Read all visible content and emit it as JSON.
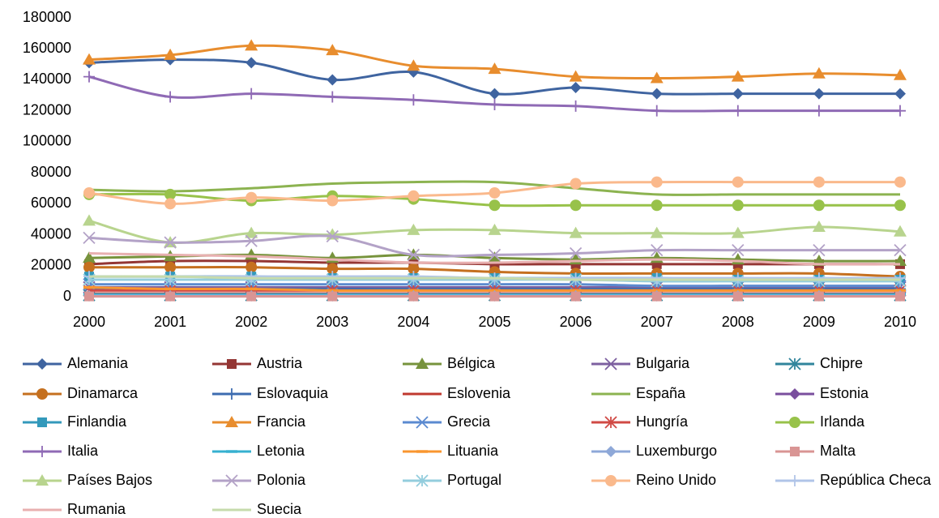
{
  "chart_data": {
    "type": "line",
    "x": [
      "2000",
      "2001",
      "2002",
      "2003",
      "2004",
      "2005",
      "2006",
      "2007",
      "2008",
      "2009",
      "2010"
    ],
    "ylim": [
      0,
      180000
    ],
    "yticks": [
      0,
      20000,
      40000,
      60000,
      80000,
      100000,
      120000,
      140000,
      160000,
      180000
    ],
    "grid": false,
    "legend": "bottom",
    "series": [
      {
        "name": "Alemania",
        "color": "#3f64a0",
        "marker": "diamond",
        "values": [
          151000,
          153000,
          151000,
          140000,
          145000,
          131000,
          135000,
          131000,
          131000,
          131000,
          131000
        ]
      },
      {
        "name": "Austria",
        "color": "#943634",
        "marker": "square",
        "values": [
          21000,
          23000,
          23000,
          22000,
          22000,
          21000,
          21000,
          21000,
          21000,
          21000,
          21000
        ]
      },
      {
        "name": "Bélgica",
        "color": "#77933c",
        "marker": "triangle",
        "values": [
          25000,
          26000,
          27000,
          25000,
          27000,
          25000,
          24000,
          25000,
          24000,
          23000,
          23000
        ]
      },
      {
        "name": "Bulgaria",
        "color": "#7d60a0",
        "marker": "x",
        "values": [
          6000,
          6000,
          6000,
          6000,
          6000,
          6000,
          6000,
          6000,
          6000,
          6000,
          6000
        ]
      },
      {
        "name": "Chipre",
        "color": "#31859c",
        "marker": "star",
        "values": [
          1000,
          1000,
          1000,
          1000,
          1000,
          1000,
          1000,
          1000,
          1000,
          1000,
          1000
        ]
      },
      {
        "name": "Dinamarca",
        "color": "#c5701f",
        "marker": "circle",
        "values": [
          19000,
          19000,
          19000,
          18000,
          18000,
          16000,
          15000,
          15000,
          15000,
          15000,
          13000
        ]
      },
      {
        "name": "Eslovaquia",
        "color": "#3d6cb0",
        "marker": "plus",
        "values": [
          5000,
          5000,
          5000,
          5000,
          5000,
          5000,
          5000,
          5000,
          5000,
          5000,
          5000
        ]
      },
      {
        "name": "Eslovenia",
        "color": "#c0392f",
        "marker": "none",
        "values": [
          2000,
          2000,
          2000,
          2000,
          2000,
          2000,
          2000,
          2000,
          2000,
          2000,
          2000
        ]
      },
      {
        "name": "España",
        "color": "#8cb350",
        "marker": "none",
        "values": [
          69000,
          68000,
          70000,
          73000,
          74000,
          74000,
          70000,
          66000,
          66000,
          66000,
          66000
        ]
      },
      {
        "name": "Estonia",
        "color": "#7a4f9e",
        "marker": "diamond",
        "values": [
          1000,
          1000,
          1000,
          1000,
          1000,
          1000,
          1000,
          1000,
          1000,
          1000,
          1000
        ]
      },
      {
        "name": "Finlandia",
        "color": "#3399bb",
        "marker": "square",
        "values": [
          13000,
          13000,
          13000,
          12000,
          12000,
          12000,
          12000,
          12000,
          11000,
          11000,
          11000
        ]
      },
      {
        "name": "Francia",
        "color": "#e88d2e",
        "marker": "triangle",
        "values": [
          153000,
          156000,
          162000,
          159000,
          149000,
          147000,
          142000,
          141000,
          142000,
          144000,
          143000
        ]
      },
      {
        "name": "Grecia",
        "color": "#5b8ad0",
        "marker": "x",
        "values": [
          8000,
          8000,
          8000,
          8000,
          8000,
          8000,
          8000,
          7000,
          7000,
          7000,
          7000
        ]
      },
      {
        "name": "Hungría",
        "color": "#d04a45",
        "marker": "star",
        "values": [
          4000,
          4000,
          4000,
          4000,
          4000,
          4000,
          4000,
          4000,
          4000,
          4000,
          4000
        ]
      },
      {
        "name": "Irlanda",
        "color": "#98c24a",
        "marker": "circle",
        "values": [
          66000,
          66000,
          62000,
          65000,
          63000,
          59000,
          59000,
          59000,
          59000,
          59000,
          59000
        ]
      },
      {
        "name": "Italia",
        "color": "#8f6ab5",
        "marker": "plus",
        "values": [
          142000,
          129000,
          131000,
          129000,
          127000,
          124000,
          123000,
          120000,
          120000,
          120000,
          120000
        ]
      },
      {
        "name": "Letonia",
        "color": "#36b0d0",
        "marker": "dash",
        "values": [
          1500,
          1500,
          1500,
          1500,
          1500,
          1500,
          1500,
          1500,
          1500,
          1500,
          1500
        ]
      },
      {
        "name": "Lituania",
        "color": "#f9962f",
        "marker": "dash",
        "values": [
          6000,
          5000,
          5000,
          4000,
          4000,
          4000,
          4000,
          4000,
          4000,
          4000,
          4000
        ]
      },
      {
        "name": "Luxemburgo",
        "color": "#8ea8d8",
        "marker": "diamond",
        "values": [
          500,
          500,
          500,
          500,
          500,
          500,
          500,
          500,
          500,
          500,
          500
        ]
      },
      {
        "name": "Malta",
        "color": "#d99594",
        "marker": "square",
        "values": [
          200,
          200,
          200,
          200,
          200,
          200,
          200,
          200,
          200,
          200,
          200
        ]
      },
      {
        "name": "Países Bajos",
        "color": "#b8d48e",
        "marker": "triangle",
        "values": [
          49000,
          35000,
          41000,
          40000,
          43000,
          43000,
          41000,
          41000,
          41000,
          45000,
          42000
        ]
      },
      {
        "name": "Polonia",
        "color": "#b3a2c7",
        "marker": "x",
        "values": [
          38000,
          35000,
          36000,
          39000,
          27000,
          27000,
          28000,
          30000,
          30000,
          30000,
          30000
        ]
      },
      {
        "name": "Portugal",
        "color": "#93cddd",
        "marker": "star",
        "values": [
          11000,
          11000,
          11000,
          11000,
          11000,
          11000,
          11000,
          10000,
          10000,
          10000,
          10000
        ]
      },
      {
        "name": "Reino Unido",
        "color": "#fab98c",
        "marker": "circle",
        "values": [
          67000,
          60000,
          64000,
          62000,
          65000,
          67000,
          73000,
          74000,
          74000,
          74000,
          74000
        ]
      },
      {
        "name": "República Checa",
        "color": "#b0c4e8",
        "marker": "plus",
        "values": [
          13000,
          13000,
          13000,
          13000,
          13000,
          12000,
          12000,
          12000,
          12000,
          12000,
          12000
        ]
      },
      {
        "name": "Rumania",
        "color": "#e8b0b0",
        "marker": "none",
        "values": [
          28000,
          27000,
          26000,
          24000,
          22000,
          22000,
          23000,
          24000,
          23000,
          21000,
          21000
        ]
      },
      {
        "name": "Suecia",
        "color": "#c6dbac",
        "marker": "none",
        "values": [
          13000,
          13000,
          12000,
          12000,
          12000,
          12000,
          11000,
          11000,
          11000,
          11000,
          11000
        ]
      }
    ]
  }
}
